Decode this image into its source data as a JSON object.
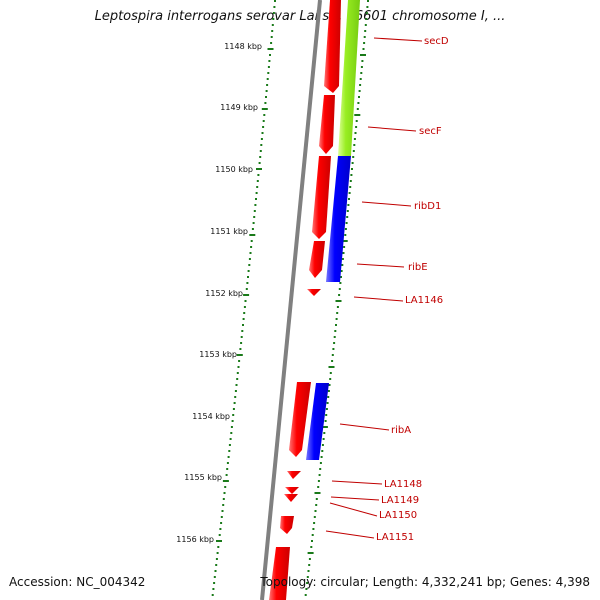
{
  "title": "Leptospira interrogans serovar Lai str. 56601 chromosome I, ...",
  "accession": "Accession: NC_004342",
  "summary": "Topology: circular; Length: 4,332,241 bp; Genes: 4,398",
  "colors": {
    "forward_strand": "#ff0000",
    "reverse_blue": "#0000ff",
    "reverse_green": "#99ee22",
    "gene_label": "#c00000",
    "tick_marks": "#1a7a1a",
    "backbone": "#808080"
  },
  "ticks": [
    {
      "label": "1148 kbp"
    },
    {
      "label": "1149 kbp"
    },
    {
      "label": "1150 kbp"
    },
    {
      "label": "1151 kbp"
    },
    {
      "label": "1152 kbp"
    },
    {
      "label": "1153 kbp"
    },
    {
      "label": "1154 kbp"
    },
    {
      "label": "1155 kbp"
    },
    {
      "label": "1156 kbp"
    }
  ],
  "genes": [
    {
      "label": "secD",
      "color": "reverse_green"
    },
    {
      "label": "secF",
      "color": "reverse_green"
    },
    {
      "label": "ribD1",
      "color": "reverse_blue"
    },
    {
      "label": "ribE",
      "color": "reverse_blue"
    },
    {
      "label": "LA1146",
      "color": "forward_strand"
    },
    {
      "label": "ribA",
      "color": "reverse_blue"
    },
    {
      "label": "LA1148",
      "color": "forward_strand"
    },
    {
      "label": "LA1149",
      "color": "forward_strand"
    },
    {
      "label": "LA1150",
      "color": "forward_strand"
    },
    {
      "label": "LA1151",
      "color": "forward_strand"
    }
  ]
}
